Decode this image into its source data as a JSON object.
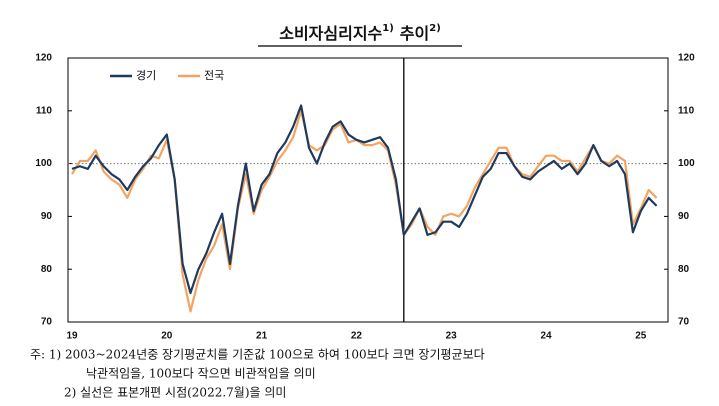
{
  "chart_data": {
    "type": "line",
    "title": "소비자심리지수",
    "title_sup1": "1)",
    "title_tail": "추이",
    "title_sup2": "2)",
    "categories": [
      "19",
      null,
      null,
      null,
      null,
      null,
      null,
      null,
      null,
      null,
      null,
      null,
      "20",
      null,
      null,
      null,
      null,
      null,
      null,
      null,
      null,
      null,
      null,
      null,
      "21",
      null,
      null,
      null,
      null,
      null,
      null,
      null,
      null,
      null,
      null,
      null,
      "22",
      null,
      null,
      null,
      null,
      null,
      null,
      null,
      null,
      null,
      null,
      null,
      "23",
      null,
      null,
      null,
      null,
      null,
      null,
      null,
      null,
      null,
      null,
      null,
      "24",
      null,
      null,
      null,
      null,
      null,
      null,
      null,
      null,
      null,
      null,
      null,
      "25",
      null,
      null
    ],
    "series": [
      {
        "name": "경기",
        "color": "#1f3a5f",
        "values": [
          99,
          99.5,
          99,
          101.5,
          99.5,
          98,
          97,
          95,
          97.5,
          99.5,
          101,
          103.5,
          105.5,
          97,
          81,
          75.5,
          80,
          83,
          87,
          90.5,
          81,
          92,
          100,
          91,
          96,
          98,
          102,
          104,
          107,
          111,
          103,
          100,
          104,
          107,
          108,
          105.5,
          104.5,
          104,
          104.5,
          105,
          103,
          97,
          86.5,
          89,
          91.5,
          86.5,
          87,
          89,
          89,
          88,
          90.5,
          94,
          97.5,
          99,
          102,
          102,
          99.5,
          97.5,
          97,
          98.5,
          99.5,
          100.5,
          99,
          100,
          98,
          100,
          103.5,
          100.5,
          99.5,
          100.5,
          98,
          87,
          91,
          93.5,
          92
        ]
      },
      {
        "name": "전국",
        "color": "#f4a460",
        "values": [
          98,
          100.5,
          100.5,
          102.5,
          98.5,
          97,
          96,
          93.5,
          97,
          99,
          101.5,
          101,
          104.5,
          97,
          79,
          72,
          78,
          82,
          84.5,
          88.5,
          80,
          91.5,
          98,
          90.5,
          95,
          97.5,
          100.5,
          102.5,
          105,
          110,
          103.5,
          102.5,
          103.5,
          106.5,
          107.5,
          104,
          104.5,
          103.5,
          103.5,
          104,
          102.5,
          96,
          86.5,
          88.5,
          91.5,
          88,
          86.5,
          90,
          90.5,
          90,
          92,
          95.5,
          98,
          100.5,
          103,
          103,
          99.5,
          98,
          97.5,
          99.5,
          101.5,
          101.5,
          100.5,
          100.5,
          98.5,
          101,
          103.5,
          100.5,
          100,
          101.5,
          100.5,
          88.5,
          91.5,
          95,
          93.5
        ]
      }
    ],
    "ylim": [
      70,
      120
    ],
    "yticks": [
      70,
      80,
      90,
      100,
      110,
      120
    ],
    "y2lim": [
      70,
      120
    ],
    "y2ticks": [
      70,
      80,
      90,
      100,
      110,
      120
    ],
    "reference_line": 100,
    "vline_at": 42,
    "legend": "upper left",
    "notes": [
      "주: 1) 2003~2024년중 장기평균치를 기준값 100으로 하여 100보다 크면 장기평균보다",
      "낙관적임을, 100보다 작으면 비관적임을 의미",
      "2) 실선은 표본개편 시점(2022.7월)을 의미"
    ]
  }
}
